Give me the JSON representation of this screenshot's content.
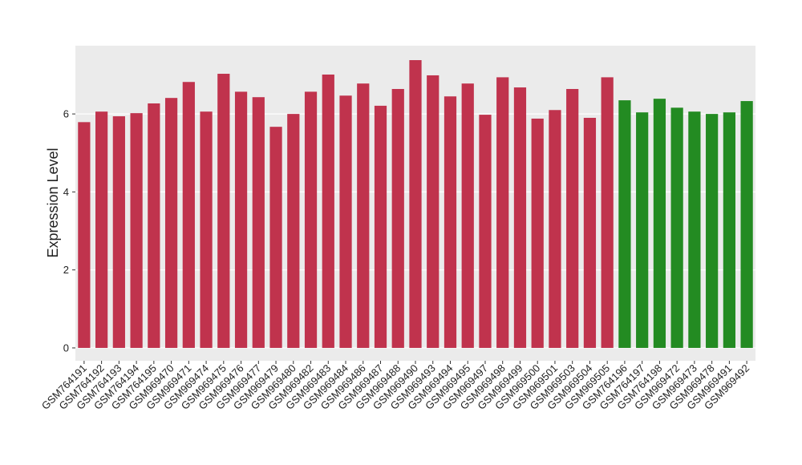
{
  "chart_data": {
    "type": "bar",
    "y_label": "Expression Level",
    "categories": [
      "GSM764191",
      "GSM764192",
      "GSM764193",
      "GSM764194",
      "GSM764195",
      "GSM969470",
      "GSM969471",
      "GSM969474",
      "GSM969475",
      "GSM969476",
      "GSM969477",
      "GSM969479",
      "GSM969480",
      "GSM969482",
      "GSM969483",
      "GSM969484",
      "GSM969486",
      "GSM969487",
      "GSM969488",
      "GSM969490",
      "GSM969493",
      "GSM969494",
      "GSM969495",
      "GSM969497",
      "GSM969498",
      "GSM969499",
      "GSM969500",
      "GSM969501",
      "GSM969503",
      "GSM969504",
      "GSM969505",
      "GSM764196",
      "GSM764197",
      "GSM764198",
      "GSM969472",
      "GSM969473",
      "GSM969478",
      "GSM969491",
      "GSM969492"
    ],
    "values": [
      5.79,
      6.06,
      5.94,
      6.02,
      6.27,
      6.41,
      6.82,
      6.06,
      7.03,
      6.57,
      6.43,
      5.67,
      6.0,
      6.57,
      7.01,
      6.47,
      6.78,
      6.21,
      6.64,
      7.38,
      6.99,
      6.45,
      6.78,
      5.98,
      6.94,
      6.68,
      5.88,
      6.1,
      6.64,
      5.9,
      6.94,
      6.35,
      6.04,
      6.39,
      6.16,
      6.06,
      6.0,
      6.04,
      6.33
    ],
    "colors": [
      "#c0334d",
      "#c0334d",
      "#c0334d",
      "#c0334d",
      "#c0334d",
      "#c0334d",
      "#c0334d",
      "#c0334d",
      "#c0334d",
      "#c0334d",
      "#c0334d",
      "#c0334d",
      "#c0334d",
      "#c0334d",
      "#c0334d",
      "#c0334d",
      "#c0334d",
      "#c0334d",
      "#c0334d",
      "#c0334d",
      "#c0334d",
      "#c0334d",
      "#c0334d",
      "#c0334d",
      "#c0334d",
      "#c0334d",
      "#c0334d",
      "#c0334d",
      "#c0334d",
      "#c0334d",
      "#c0334d",
      "#238b22",
      "#238b22",
      "#238b22",
      "#238b22",
      "#238b22",
      "#238b22",
      "#238b22",
      "#238b22"
    ],
    "ylim": [
      -0.33,
      7.75
    ],
    "yticks": [
      0,
      2,
      4,
      6
    ],
    "grid": true
  }
}
